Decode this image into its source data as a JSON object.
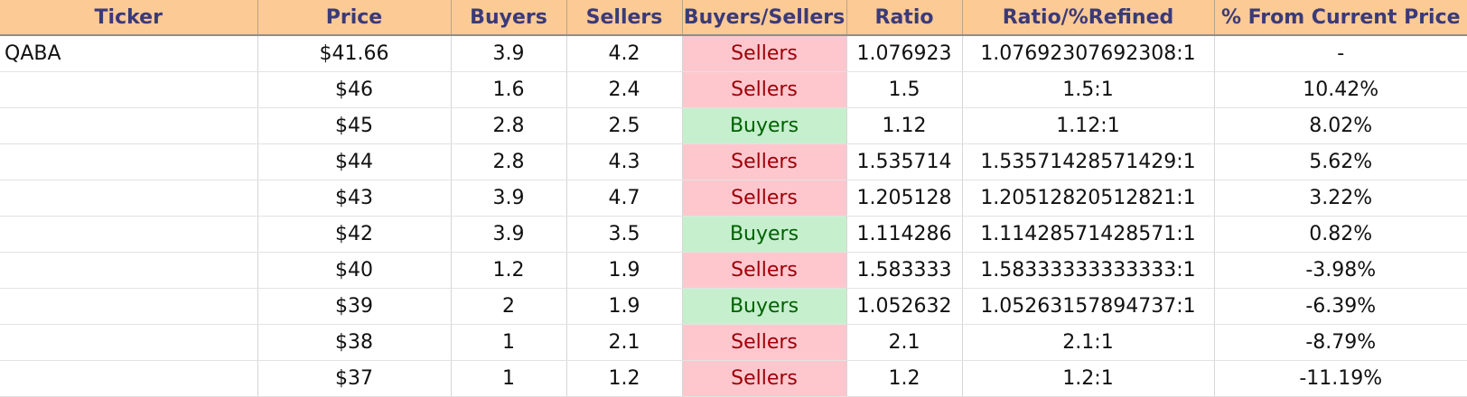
{
  "headers": [
    "Ticker",
    "Price",
    "Buyers",
    "Sellers",
    "Buyers/Sellers",
    "Ratio",
    "Ratio/%Refined",
    "% From Current Price"
  ],
  "colors": {
    "header_bg": "#fcca95",
    "header_text": "#3b3a78",
    "sellers_bg": "#fec7ce",
    "sellers_text": "#9c0006",
    "buyers_bg": "#c6efce",
    "buyers_text": "#006100"
  },
  "rows": [
    {
      "ticker": "QABA",
      "price": "$41.66",
      "buyers": "3.9",
      "sellers": "4.2",
      "side": "Sellers",
      "ratio": "1.076923",
      "refined": "1.07692307692308:1",
      "pct": "-"
    },
    {
      "ticker": "",
      "price": "$46",
      "buyers": "1.6",
      "sellers": "2.4",
      "side": "Sellers",
      "ratio": "1.5",
      "refined": "1.5:1",
      "pct": "10.42%"
    },
    {
      "ticker": "",
      "price": "$45",
      "buyers": "2.8",
      "sellers": "2.5",
      "side": "Buyers",
      "ratio": "1.12",
      "refined": "1.12:1",
      "pct": "8.02%"
    },
    {
      "ticker": "",
      "price": "$44",
      "buyers": "2.8",
      "sellers": "4.3",
      "side": "Sellers",
      "ratio": "1.535714",
      "refined": "1.53571428571429:1",
      "pct": "5.62%"
    },
    {
      "ticker": "",
      "price": "$43",
      "buyers": "3.9",
      "sellers": "4.7",
      "side": "Sellers",
      "ratio": "1.205128",
      "refined": "1.20512820512821:1",
      "pct": "3.22%"
    },
    {
      "ticker": "",
      "price": "$42",
      "buyers": "3.9",
      "sellers": "3.5",
      "side": "Buyers",
      "ratio": "1.114286",
      "refined": "1.11428571428571:1",
      "pct": "0.82%"
    },
    {
      "ticker": "",
      "price": "$40",
      "buyers": "1.2",
      "sellers": "1.9",
      "side": "Sellers",
      "ratio": "1.583333",
      "refined": "1.58333333333333:1",
      "pct": "-3.98%"
    },
    {
      "ticker": "",
      "price": "$39",
      "buyers": "2",
      "sellers": "1.9",
      "side": "Buyers",
      "ratio": "1.052632",
      "refined": "1.05263157894737:1",
      "pct": "-6.39%"
    },
    {
      "ticker": "",
      "price": "$38",
      "buyers": "1",
      "sellers": "2.1",
      "side": "Sellers",
      "ratio": "2.1",
      "refined": "2.1:1",
      "pct": "-8.79%"
    },
    {
      "ticker": "",
      "price": "$37",
      "buyers": "1",
      "sellers": "1.2",
      "side": "Sellers",
      "ratio": "1.2",
      "refined": "1.2:1",
      "pct": "-11.19%"
    }
  ]
}
